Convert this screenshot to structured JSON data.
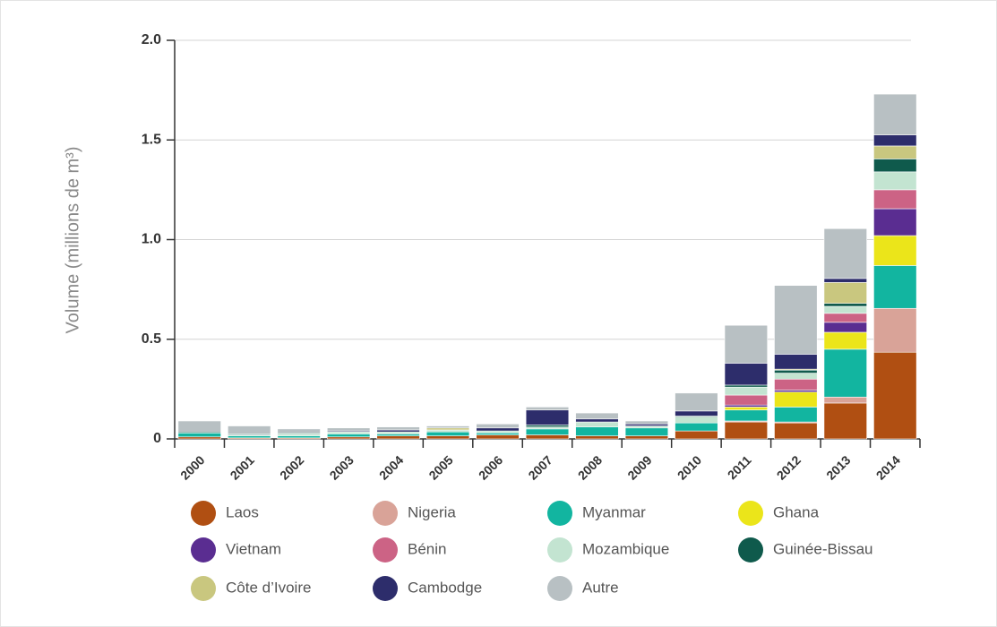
{
  "chart_data": {
    "type": "stacked_bar",
    "y_label": "Volume (millions de m³)",
    "categories": [
      "2000",
      "2001",
      "2002",
      "2003",
      "2004",
      "2005",
      "2006",
      "2007",
      "2008",
      "2009",
      "2010",
      "2011",
      "2012",
      "2013",
      "2014"
    ],
    "ylim": [
      0,
      2
    ],
    "yticks": [
      0,
      0.5,
      {
        "value": 1,
        "label": "1.0"
      },
      1.5,
      {
        "value": 2,
        "label": "2.0"
      }
    ],
    "grid": true,
    "series": [
      {
        "name": "Laos",
        "color": "#b04f12",
        "values": [
          0.01,
          0.005,
          0.005,
          0.01,
          0.015,
          0.015,
          0.02,
          0.02,
          0.015,
          0.015,
          0.04,
          0.085,
          0.08,
          0.18,
          0.435
        ]
      },
      {
        "name": "Nigeria",
        "color": "#d9a398",
        "values": [
          0,
          0,
          0,
          0,
          0,
          0,
          0,
          0,
          0,
          0,
          0,
          0.005,
          0.005,
          0.03,
          0.22
        ]
      },
      {
        "name": "Myanmar",
        "color": "#12b5a0",
        "values": [
          0.02,
          0.01,
          0.01,
          0.015,
          0.01,
          0.02,
          0.01,
          0.03,
          0.045,
          0.04,
          0.04,
          0.055,
          0.075,
          0.24,
          0.215
        ]
      },
      {
        "name": "Ghana",
        "color": "#ebe51a",
        "values": [
          0,
          0,
          0,
          0,
          0,
          0,
          0,
          0,
          0,
          0,
          0,
          0.015,
          0.075,
          0.085,
          0.15
        ]
      },
      {
        "name": "Vietnam",
        "color": "#5a2d91",
        "values": [
          0,
          0,
          0,
          0,
          0,
          0,
          0,
          0,
          0,
          0,
          0,
          0.01,
          0.01,
          0.05,
          0.135
        ]
      },
      {
        "name": "Bénin",
        "color": "#cc6385",
        "values": [
          0,
          0,
          0,
          0,
          0,
          0,
          0,
          0,
          0,
          0,
          0,
          0.05,
          0.055,
          0.045,
          0.095
        ]
      },
      {
        "name": "Mozambique",
        "color": "#c3e4d1",
        "values": [
          0,
          0.005,
          0.01,
          0.01,
          0.01,
          0.01,
          0.01,
          0.01,
          0.025,
          0.01,
          0.03,
          0.04,
          0.03,
          0.035,
          0.09
        ]
      },
      {
        "name": "Guinée-Bissau",
        "color": "#0f5a4c",
        "values": [
          0.005,
          0.005,
          0.005,
          0,
          0,
          0,
          0,
          0.01,
          0,
          0,
          0.005,
          0.01,
          0.015,
          0.015,
          0.065
        ]
      },
      {
        "name": "Côte d’Ivoire",
        "color": "#c9c77f",
        "values": [
          0,
          0,
          0,
          0,
          0,
          0.01,
          0,
          0,
          0,
          0,
          0,
          0,
          0.005,
          0.105,
          0.065
        ]
      },
      {
        "name": "Cambodge",
        "color": "#2d2d6b",
        "values": [
          0,
          0,
          0,
          0.005,
          0.01,
          0,
          0.015,
          0.075,
          0.015,
          0.01,
          0.025,
          0.11,
          0.075,
          0.02,
          0.055
        ]
      },
      {
        "name": "Autre",
        "color": "#b8c0c3",
        "values": [
          0.055,
          0.04,
          0.02,
          0.015,
          0.015,
          0.01,
          0.02,
          0.015,
          0.03,
          0.015,
          0.09,
          0.19,
          0.345,
          0.25,
          0.205
        ]
      }
    ]
  }
}
